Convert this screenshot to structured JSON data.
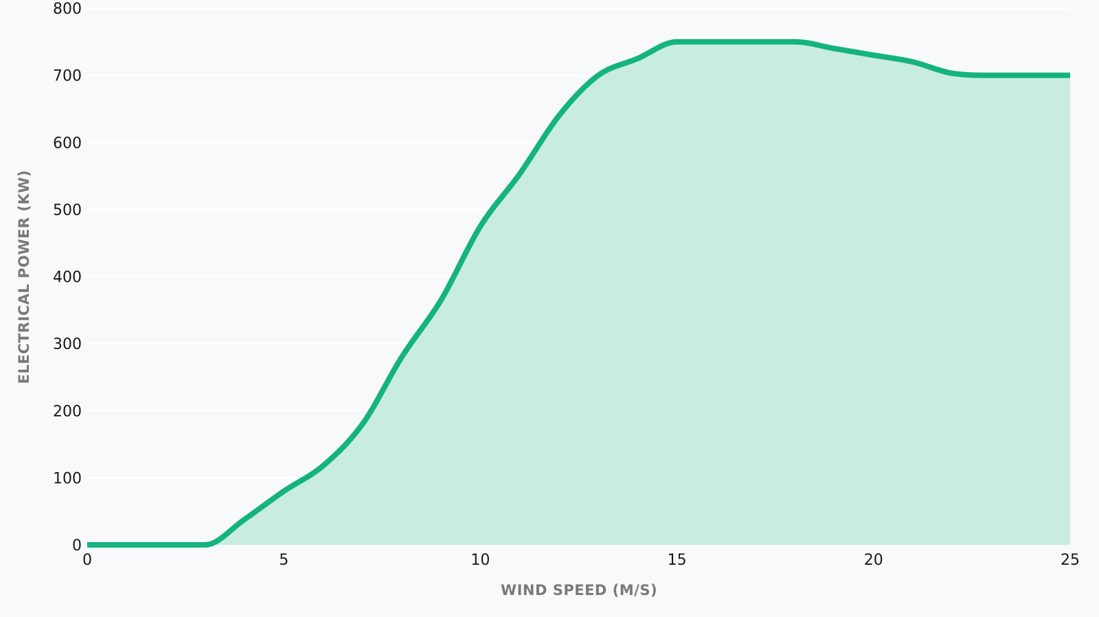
{
  "chart_data": {
    "type": "area",
    "title": "",
    "xlabel": "WIND SPEED (M/S)",
    "ylabel": "ELECTRICAL POWER (KW)",
    "xlim": [
      0,
      25
    ],
    "ylim": [
      0,
      800
    ],
    "x_ticks": [
      "0",
      "5",
      "10",
      "15",
      "20",
      "25"
    ],
    "y_ticks": [
      "0",
      "100",
      "200",
      "300",
      "400",
      "500",
      "600",
      "700",
      "800"
    ],
    "grid": "horizontal",
    "legend": "none",
    "colors": {
      "line": "#14b47c",
      "fill": "#c8ede0",
      "background": "#f8f9fb",
      "grid": "#ffffff"
    },
    "series": [
      {
        "x": [
          0,
          1,
          2,
          3,
          4,
          5,
          6,
          7,
          8,
          9,
          10,
          11,
          12,
          13,
          14,
          15,
          16,
          17,
          18,
          19,
          20,
          21,
          22,
          23,
          24,
          25
        ],
        "values": [
          0,
          0,
          0,
          0,
          38,
          80,
          118,
          180,
          280,
          365,
          475,
          553,
          640,
          700,
          725,
          750,
          750,
          750,
          750,
          740,
          730,
          720,
          703,
          700,
          700,
          700
        ]
      }
    ]
  }
}
